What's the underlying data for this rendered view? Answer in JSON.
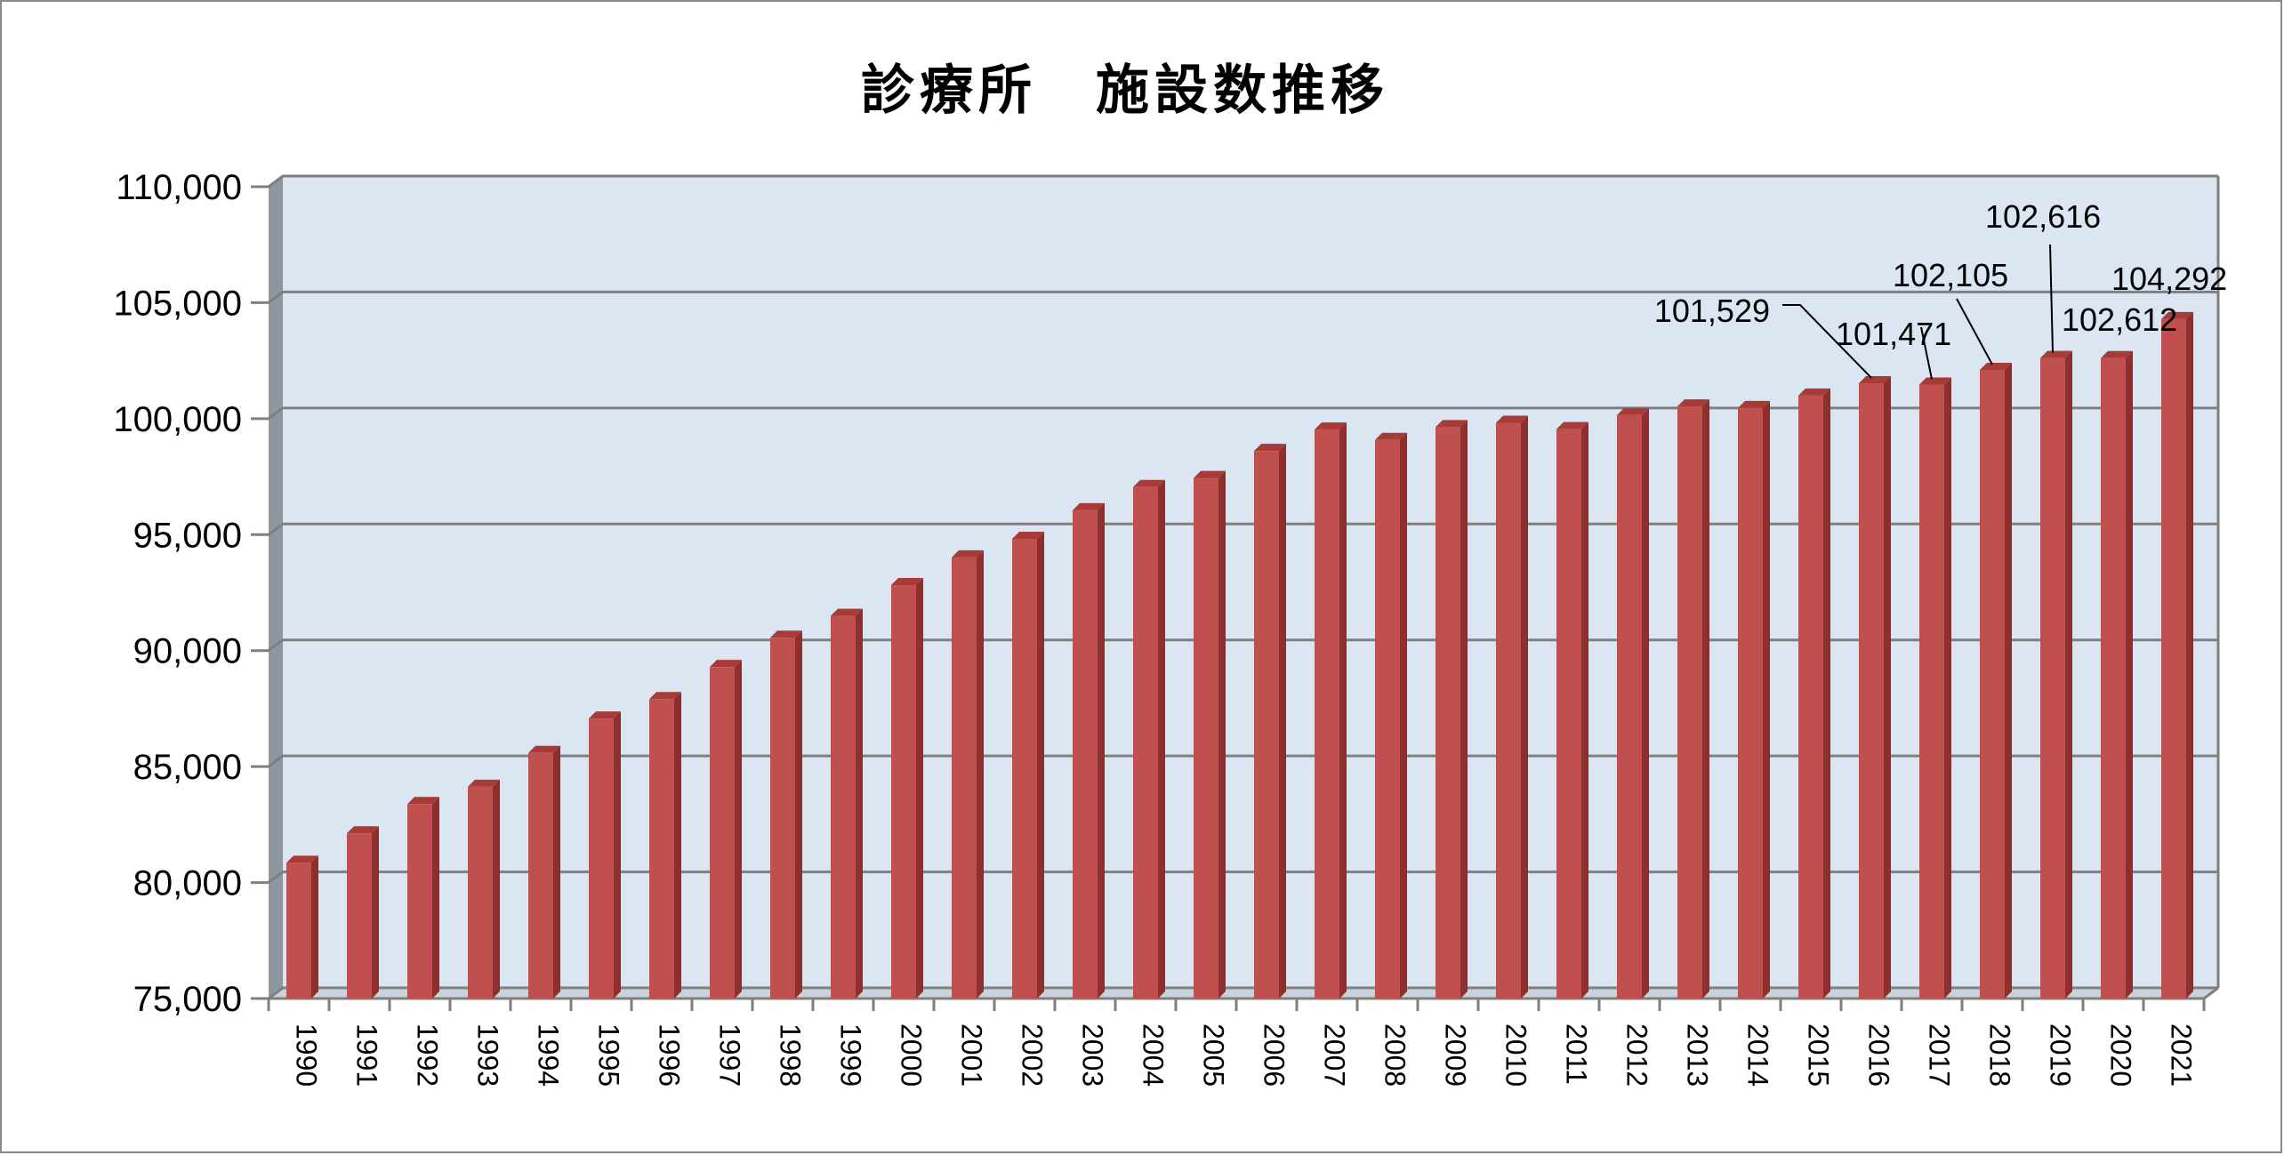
{
  "chart_data": {
    "type": "bar",
    "title": "診療所　施設数推移",
    "xlabel": "",
    "ylabel": "",
    "ylim": [
      75000,
      110000
    ],
    "ytick_step": 5000,
    "categories": [
      "1990",
      "1991",
      "1992",
      "1993",
      "1994",
      "1995",
      "1996",
      "1997",
      "1998",
      "1999",
      "2000",
      "2001",
      "2002",
      "2003",
      "2004",
      "2005",
      "2006",
      "2007",
      "2008",
      "2009",
      "2010",
      "2011",
      "2012",
      "2013",
      "2014",
      "2015",
      "2016",
      "2017",
      "2018",
      "2019",
      "2020",
      "2021"
    ],
    "values": [
      80852,
      82120,
      83385,
      84128,
      85588,
      87069,
      87909,
      89292,
      90556,
      91500,
      92824,
      94019,
      94819,
      96050,
      97051,
      97442,
      98609,
      99532,
      99083,
      99635,
      99824,
      99547,
      100152,
      100528,
      100461,
      100995,
      101529,
      101471,
      102105,
      102616,
      102612,
      104292
    ],
    "data_labels": [
      "",
      "",
      "",
      "",
      "",
      "",
      "",
      "",
      "",
      "",
      "",
      "",
      "",
      "",
      "",
      "",
      "",
      "",
      "",
      "",
      "",
      "",
      "",
      "",
      "",
      "",
      "101,529",
      "101,471",
      "102,105",
      "102,616",
      "102,612",
      "104,292"
    ],
    "grid": true,
    "legend": "none",
    "colors": {
      "bar_front": "#c0504d",
      "bar_side": "#8f2f2d",
      "bar_top": "#a83a37",
      "plot_background": "#dce6f2",
      "side_wall": "#8e96a0",
      "gridline": "#7f7f7f"
    }
  }
}
